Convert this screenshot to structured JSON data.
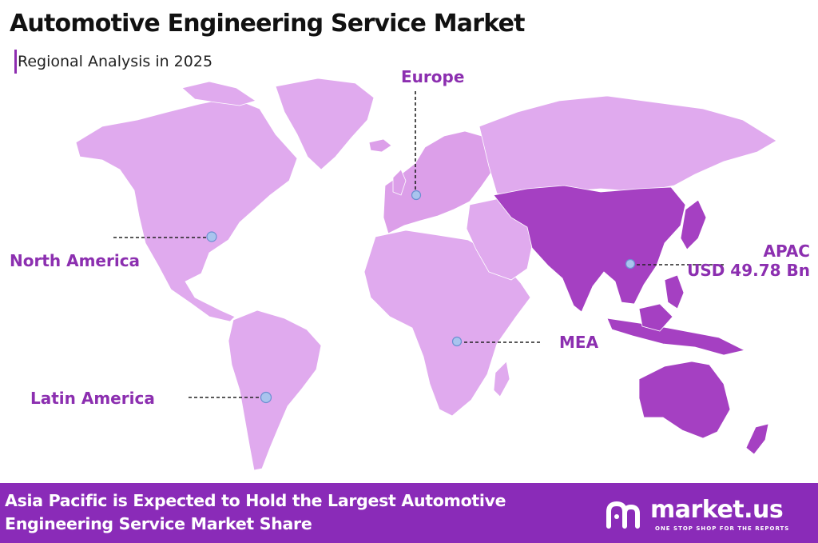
{
  "header": {
    "title": "Automotive Engineering Service Market",
    "subtitle": "Regional Analysis in 2025"
  },
  "colors": {
    "land_light": "#e0aaee",
    "land_europe": "#dc9fe9",
    "land_apac": "#a540c2",
    "label_purple": "#8c2fb0",
    "label_dark": "#3a1a4a",
    "marker_fill": "#a9c4ee",
    "marker_stroke": "#6c8fd1",
    "footer_bg": "#8a2bb8",
    "title_text": "#111111"
  },
  "regions": [
    {
      "id": "north-america",
      "label": "North America",
      "value": ""
    },
    {
      "id": "europe",
      "label": "Europe",
      "value": ""
    },
    {
      "id": "apac",
      "label": "APAC",
      "value": "USD 49.78 Bn"
    },
    {
      "id": "mea",
      "label": "MEA",
      "value": ""
    },
    {
      "id": "latin-america",
      "label": "Latin America",
      "value": ""
    }
  ],
  "highlighted_region": "apac",
  "footer": {
    "text": "Asia Pacific is Expected to Hold the Largest Automotive Engineering Service Market Share",
    "brand_name": "market.us",
    "brand_tagline": "ONE STOP SHOP FOR THE REPORTS",
    "brand_icon": "market-us-logo-icon"
  }
}
